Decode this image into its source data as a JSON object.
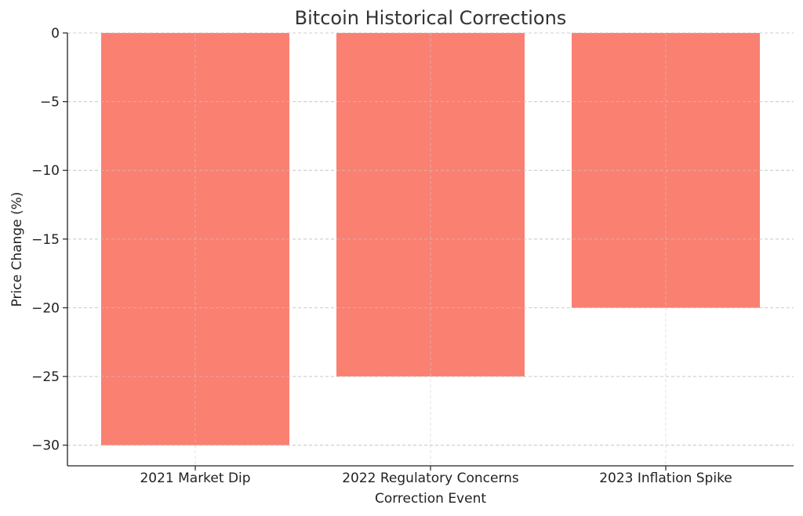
{
  "chart_data": {
    "type": "bar",
    "title": "Bitcoin Historical Corrections",
    "xlabel": "Correction Event",
    "ylabel": "Price Change (%)",
    "categories": [
      "2021 Market Dip",
      "2022 Regulatory Concerns",
      "2023 Inflation Spike"
    ],
    "values": [
      -30,
      -25,
      -20
    ],
    "ylim": [
      -31.5,
      0
    ],
    "yticks": [
      0,
      -5,
      -10,
      -15,
      -20,
      -25,
      -30
    ],
    "ytick_labels": [
      "0",
      "−5",
      "−10",
      "−15",
      "−20",
      "−25",
      "−30"
    ],
    "bar_color": "#fa8072",
    "grid": true
  }
}
